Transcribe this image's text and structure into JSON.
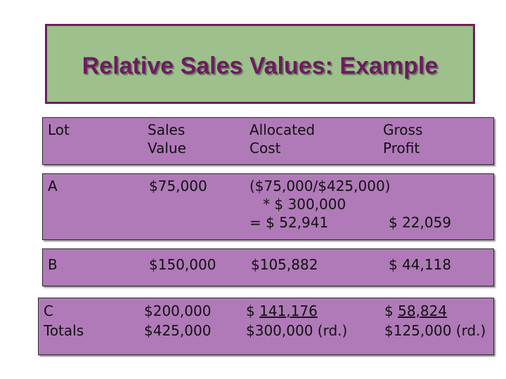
{
  "title": "Relative Sales Values: Example",
  "header": {
    "lot": "Lot",
    "sales_value": "Sales\nValue",
    "allocated_cost": "Allocated\nCost",
    "gross_profit": "Gross\nProfit"
  },
  "row_a": {
    "lot": "A",
    "sales_value": "$75,000",
    "allocated_line1": "($75,000/$425,000)",
    "allocated_line2": "   * $ 300,000",
    "allocated_line3": "= $ 52,941",
    "gross_profit": "$ 22,059"
  },
  "row_b": {
    "lot": "B",
    "sales_value": "$150,000",
    "allocated_cost": "$105,882",
    "gross_profit": "$ 44,118"
  },
  "row_c": {
    "lot": "C",
    "totals_label": "Totals",
    "sales_value": "$200,000",
    "sales_total": "$425,000",
    "allocated_cost_prefix": "$ ",
    "allocated_cost_underlined": "141,176",
    "allocated_total": "$300,000 (rd.)",
    "gross_profit_prefix": "$ ",
    "gross_profit_underlined": "58,824",
    "gross_total": "$125,000 (rd.)"
  },
  "colors": {
    "title_background": "#9dc08c",
    "title_border": "#6b1f5e",
    "title_text": "#6e1a63",
    "band_background": "#b07ab8"
  }
}
